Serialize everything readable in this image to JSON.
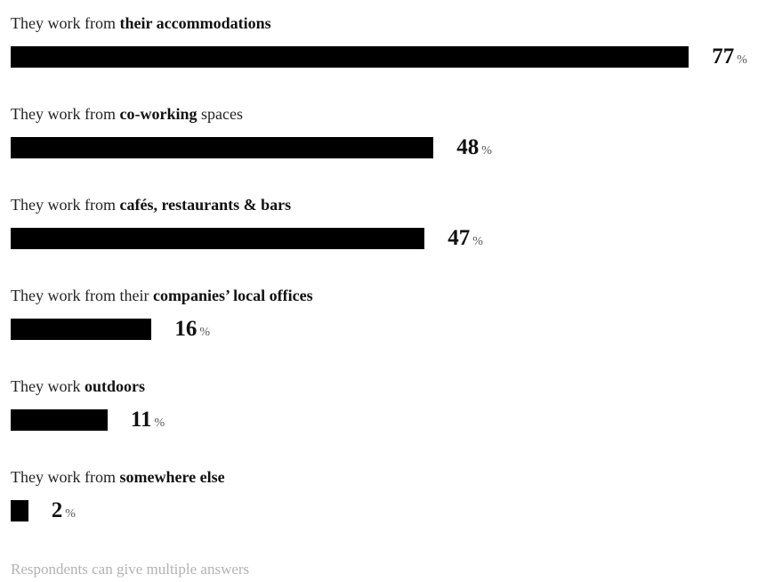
{
  "chart_data": {
    "type": "bar",
    "orientation": "horizontal",
    "unit": "%",
    "xlim": [
      0,
      100
    ],
    "categories": [
      [
        "They work from ",
        "their accommodations",
        ""
      ],
      [
        "They work from ",
        "co-working",
        " spaces"
      ],
      [
        "They work from ",
        "cafés, restaurants & bars",
        ""
      ],
      [
        "They work from their ",
        "companies’ local offices",
        ""
      ],
      [
        "They work ",
        "outdoors",
        ""
      ],
      [
        "They work from ",
        "somewhere else",
        ""
      ]
    ],
    "values": [
      77,
      48,
      47,
      16,
      11,
      2
    ],
    "bar_color": "#000000",
    "footnote": "Respondents can give multiple answers"
  }
}
